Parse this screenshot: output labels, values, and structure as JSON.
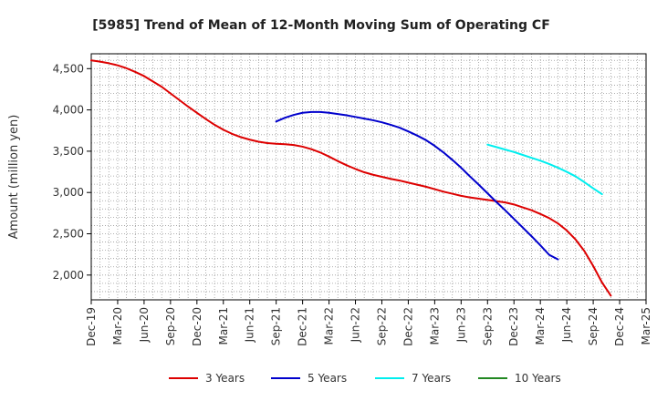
{
  "chart_data": {
    "type": "line",
    "title": "[5985]  Trend of Mean of 12-Month Moving Sum of Operating CF",
    "xlabel": "",
    "ylabel": "Amount (million yen)",
    "x_start": "Dec-19",
    "x_end": "Mar-25",
    "x_tick_labels": [
      "Dec-19",
      "Mar-20",
      "Jun-20",
      "Sep-20",
      "Dec-20",
      "Mar-21",
      "Jun-21",
      "Sep-21",
      "Dec-21",
      "Mar-22",
      "Jun-22",
      "Sep-22",
      "Dec-22",
      "Mar-23",
      "Jun-23",
      "Sep-23",
      "Dec-23",
      "Mar-24",
      "Jun-24",
      "Sep-24",
      "Dec-24",
      "Mar-25"
    ],
    "y_ticks": [
      2000,
      2500,
      3000,
      3500,
      4000,
      4500
    ],
    "y_tick_labels": [
      "2,000",
      "2,500",
      "3,000",
      "3,500",
      "4,000",
      "4,500"
    ],
    "ylim": [
      1700,
      4680
    ],
    "grid": true,
    "legend_position": "bottom",
    "series": [
      {
        "name": "3 Years",
        "color": "#dd0000",
        "start": "Dec-19",
        "values": [
          4600,
          4585,
          4565,
          4540,
          4505,
          4460,
          4410,
          4345,
          4280,
          4200,
          4120,
          4040,
          3965,
          3890,
          3820,
          3760,
          3710,
          3670,
          3640,
          3615,
          3598,
          3590,
          3585,
          3575,
          3555,
          3525,
          3485,
          3435,
          3380,
          3330,
          3285,
          3245,
          3215,
          3190,
          3165,
          3145,
          3120,
          3095,
          3070,
          3040,
          3010,
          2985,
          2960,
          2940,
          2925,
          2910,
          2895,
          2880,
          2855,
          2820,
          2785,
          2740,
          2690,
          2625,
          2540,
          2430,
          2290,
          2110,
          1910,
          1750
        ]
      },
      {
        "name": "5 Years",
        "color": "#0000cc",
        "start": "Sep-21",
        "values": [
          3860,
          3905,
          3940,
          3965,
          3975,
          3975,
          3965,
          3950,
          3935,
          3915,
          3895,
          3875,
          3850,
          3820,
          3785,
          3740,
          3690,
          3635,
          3565,
          3485,
          3395,
          3300,
          3195,
          3095,
          2990,
          2885,
          2785,
          2680,
          2575,
          2470,
          2360,
          2245,
          2190
        ]
      },
      {
        "name": "7 Years",
        "color": "#00eeee",
        "start": "Sep-23",
        "values": [
          3580,
          3550,
          3520,
          3490,
          3455,
          3420,
          3385,
          3345,
          3300,
          3250,
          3195,
          3125,
          3050,
          2980
        ]
      },
      {
        "name": "10 Years",
        "color": "#228822",
        "start": "Sep-24",
        "values": []
      }
    ]
  }
}
